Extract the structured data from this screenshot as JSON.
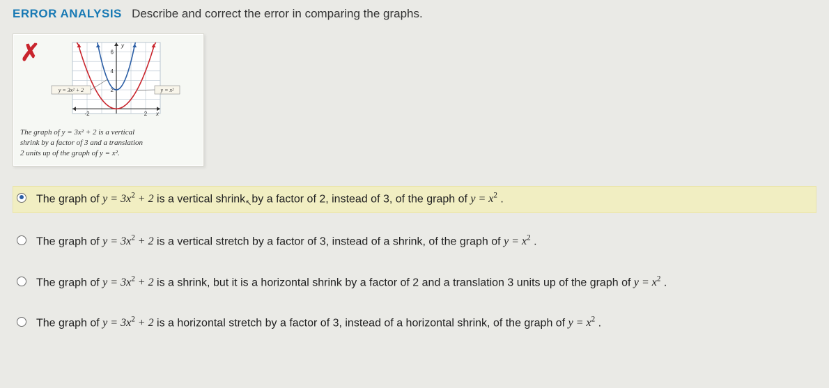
{
  "header": {
    "tag": "ERROR ANALYSIS",
    "prompt": "Describe and correct the error in comparing the graphs."
  },
  "figure": {
    "x_mark": "✗",
    "caption_line1": "The graph of y = 3x² + 2 is a vertical",
    "caption_line2": "shrink by a factor of 3 and a translation",
    "caption_line3": "2 units up of the graph of y = x².",
    "graph": {
      "type": "line",
      "curves": [
        {
          "name": "y = 3x² + 2",
          "color": "#2b5ea5",
          "label": "y = 3x² + 2"
        },
        {
          "name": "y = x²",
          "color": "#c9252d",
          "label": "y = x²"
        }
      ],
      "xlim": [
        -3,
        3
      ],
      "ylim": [
        -0.5,
        7
      ],
      "xticks": [
        -2,
        2
      ],
      "yticks": [
        2,
        4,
        6
      ],
      "grid_color": "#b9c6d0",
      "axis_color": "#333333",
      "background_color": "#ffffff",
      "axis_label_y": "y",
      "axis_label_x": "x",
      "label_box_bg": "#f8f5ea",
      "label_box_border": "#888888"
    }
  },
  "options": [
    {
      "selected": true,
      "pre": "The graph of ",
      "eq1": "y = 3x² + 2",
      "mid": " is a vertical shrink",
      "cursor": "⬚",
      "mid2": "by a factor of 2, instead of 3, of the graph of ",
      "eq2": "y = x²",
      "post": " ."
    },
    {
      "selected": false,
      "pre": "The graph of ",
      "eq1": "y = 3x² + 2",
      "mid": " is a vertical stretch by a factor of 3, instead of a shrink,  of the graph of ",
      "eq2": "y = x²",
      "post": " ."
    },
    {
      "selected": false,
      "pre": "The graph of ",
      "eq1": "y = 3x² + 2",
      "mid": "  is a shrink, but it is a horizontal shrink by a factor of 2 and a translation 3 units up of the graph of ",
      "eq2": "y = x²",
      "post": " ."
    },
    {
      "selected": false,
      "pre": "The graph of ",
      "eq1": "y = 3x² + 2",
      "mid": " is  a horizontal stretch by a factor of 3, instead of a horizontal shrink, of the graph of ",
      "eq2": "y = x²",
      "post": " ."
    }
  ]
}
